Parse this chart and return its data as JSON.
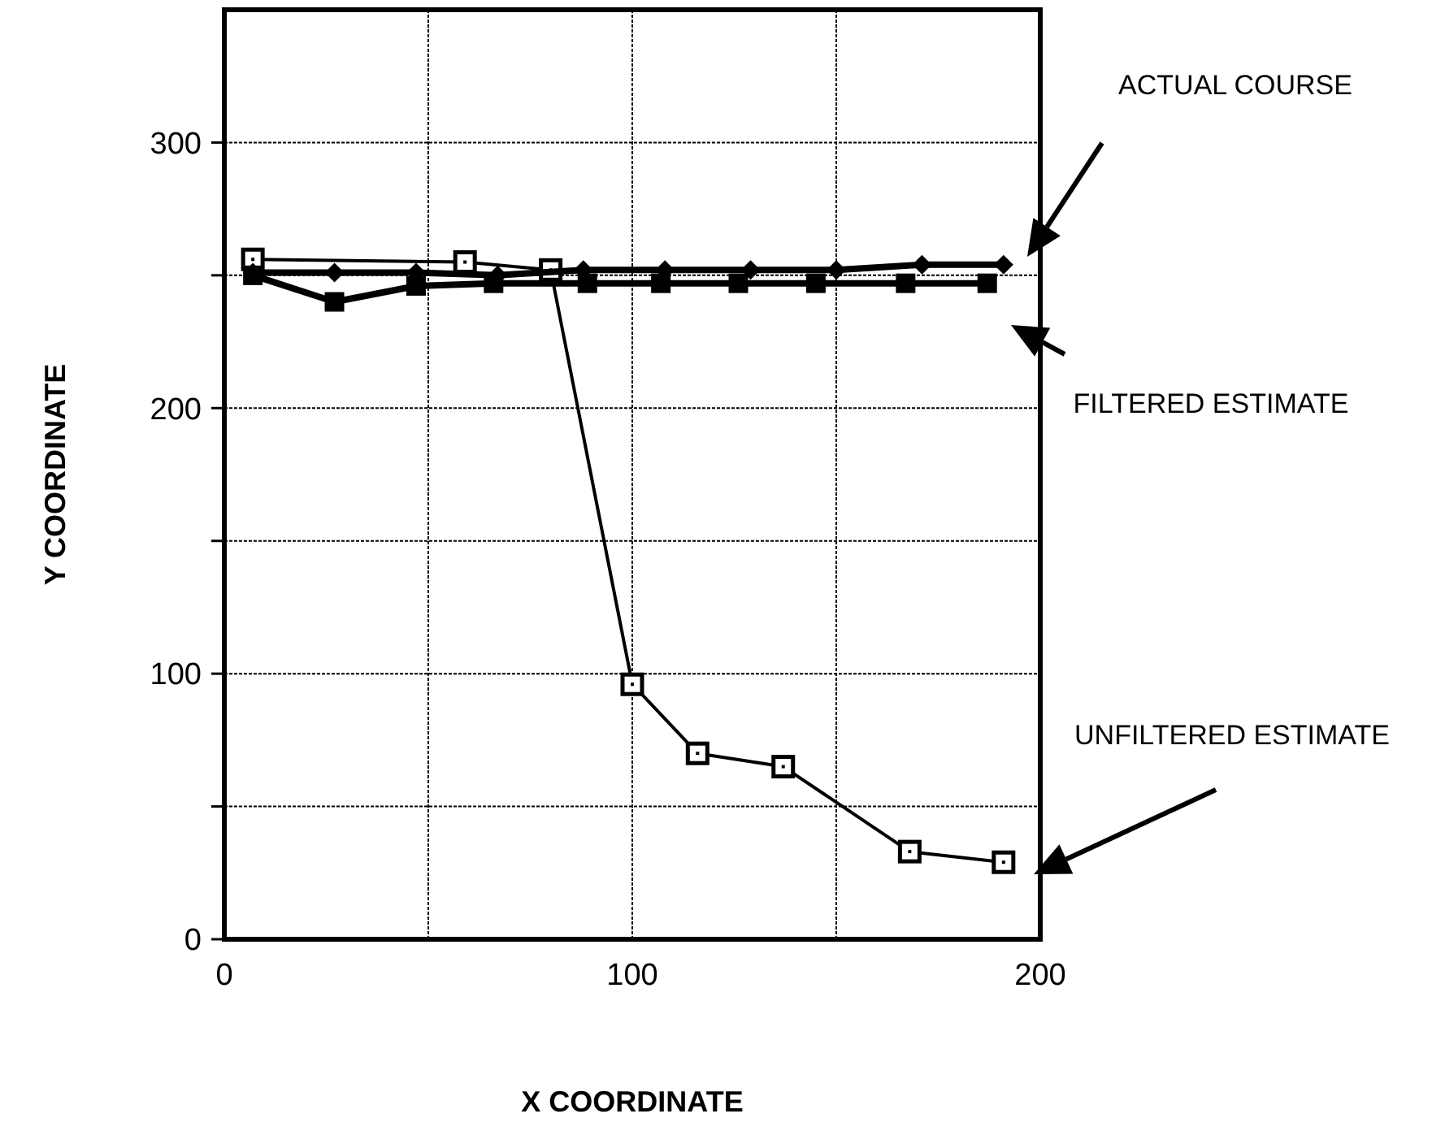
{
  "chart_data": {
    "type": "line",
    "xlabel": "X COORDINATE",
    "ylabel": "Y COORDINATE",
    "xlim": [
      0,
      200
    ],
    "ylim": [
      0,
      350
    ],
    "xticks": [
      0,
      {
        "value": 50,
        "label": null
      },
      100,
      {
        "value": 150,
        "label": null
      },
      200
    ],
    "yticks": [
      0,
      {
        "value": 50,
        "label": null
      },
      100,
      {
        "value": 150,
        "label": null
      },
      200,
      {
        "value": 250,
        "label": null
      },
      300
    ],
    "grid": true,
    "series": [
      {
        "name": "ACTUAL COURSE",
        "color": "#000000",
        "marker": "diamond",
        "x": [
          7,
          27,
          47,
          67,
          88,
          108,
          129,
          150,
          171,
          191
        ],
        "values": [
          251,
          251,
          251,
          250,
          252,
          252,
          252,
          252,
          254,
          254
        ]
      },
      {
        "name": "FILTERED ESTIMATE",
        "color": "#000000",
        "marker": "square",
        "x": [
          7,
          27,
          47,
          66,
          89,
          107,
          126,
          145,
          167,
          187
        ],
        "values": [
          250,
          240,
          246,
          247,
          247,
          247,
          247,
          247,
          247,
          247
        ]
      },
      {
        "name": "UNFILTERED ESTIMATE",
        "color": "#000000",
        "marker": "square",
        "x": [
          7,
          59,
          80,
          100,
          116,
          137,
          168,
          191
        ],
        "values": [
          256,
          255,
          252,
          96,
          70,
          65,
          33,
          29
        ]
      }
    ]
  }
}
